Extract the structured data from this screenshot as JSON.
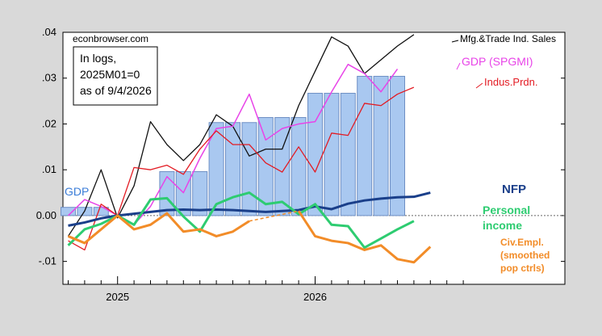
{
  "chart_data": {
    "type": "bar",
    "watermark": "econbrowser.com",
    "note_lines": [
      "In logs,",
      "2025M01=0",
      "as of 9/4/2026"
    ],
    "y_ticks": [
      ".04",
      ".03",
      ".02",
      ".01",
      "0.00",
      "-.01"
    ],
    "x_ticks": [
      "2025",
      "2026"
    ],
    "ylim": [
      -0.015,
      0.04
    ],
    "month_range": [
      "2024-10",
      "2026-10"
    ],
    "colors": {
      "gdp_bars": "#a9c8f0",
      "gdp_bar_edge": "#6e8fc4",
      "mfg_trade_sales": "#111111",
      "gdp_spgmi": "#e844e8",
      "indus_prdn": "#e31b23",
      "nfp": "#1a3f8a",
      "personal_income": "#2ecc71",
      "civ_empl": "#f28c28",
      "gdp_label": "#3b7dd8"
    },
    "series": [
      {
        "key": "gdp_bars",
        "name": "GDP",
        "kind": "bar",
        "x": [
          "2024-10",
          "2024-11",
          "2024-12",
          "2025-01",
          "2025-02",
          "2025-03",
          "2025-04",
          "2025-05",
          "2025-06",
          "2025-07",
          "2025-08",
          "2025-09",
          "2025-10",
          "2025-11",
          "2025-12",
          "2026-01",
          "2026-02",
          "2026-03",
          "2026-04",
          "2026-05",
          "2026-06"
        ],
        "values": [
          0.0018,
          0.0018,
          0.0018,
          0.0,
          0.0,
          0.0,
          0.0096,
          0.0096,
          0.0096,
          0.0203,
          0.0203,
          0.0203,
          0.0214,
          0.0214,
          0.0214,
          0.0267,
          0.0267,
          0.0267,
          0.0304,
          0.0304,
          0.0304
        ]
      },
      {
        "key": "mfg_trade_sales",
        "name": "Mfg.&Trade Ind. Sales",
        "kind": "line",
        "x": [
          "2024-10",
          "2024-11",
          "2024-12",
          "2025-01",
          "2025-02",
          "2025-03",
          "2025-04",
          "2025-05",
          "2025-06",
          "2025-07",
          "2025-08",
          "2025-09",
          "2025-10",
          "2025-11",
          "2025-12",
          "2026-01",
          "2026-02",
          "2026-03",
          "2026-04",
          "2026-05",
          "2026-06",
          "2026-07"
        ],
        "values": [
          -0.0045,
          0.001,
          0.01,
          -0.0005,
          0.0065,
          0.0205,
          0.0155,
          0.012,
          0.0155,
          0.022,
          0.0195,
          0.013,
          0.0145,
          0.0145,
          0.024,
          0.0315,
          0.039,
          0.037,
          0.031,
          0.034,
          0.037,
          0.0395
        ]
      },
      {
        "key": "gdp_spgmi",
        "name": "GDP (SPGMI)",
        "kind": "line",
        "x": [
          "2024-10",
          "2024-11",
          "2024-12",
          "2025-01",
          "2025-02",
          "2025-03",
          "2025-04",
          "2025-05",
          "2025-06",
          "2025-07",
          "2025-08",
          "2025-09",
          "2025-10",
          "2025-11",
          "2025-12",
          "2026-01",
          "2026-02",
          "2026-03",
          "2026-04",
          "2026-05",
          "2026-06"
        ],
        "values": [
          0.0,
          0.0035,
          0.002,
          0.0,
          -0.002,
          0.002,
          0.0085,
          0.005,
          0.0125,
          0.019,
          0.0195,
          0.0265,
          0.0165,
          0.019,
          0.02,
          0.0205,
          0.027,
          0.033,
          0.031,
          0.027,
          0.032
        ]
      },
      {
        "key": "indus_prdn",
        "name": "Indus.Prdn.",
        "kind": "line",
        "x": [
          "2024-10",
          "2024-11",
          "2024-12",
          "2025-01",
          "2025-02",
          "2025-03",
          "2025-04",
          "2025-05",
          "2025-06",
          "2025-07",
          "2025-08",
          "2025-09",
          "2025-10",
          "2025-11",
          "2025-12",
          "2026-01",
          "2026-02",
          "2026-03",
          "2026-04",
          "2026-05",
          "2026-06",
          "2026-07"
        ],
        "values": [
          -0.0055,
          -0.0075,
          0.0025,
          0.0,
          0.0105,
          0.01,
          0.011,
          0.009,
          0.0145,
          0.0185,
          0.0155,
          0.0155,
          0.0115,
          0.0095,
          0.015,
          0.0095,
          0.018,
          0.0175,
          0.0245,
          0.024,
          0.0265,
          0.028
        ]
      },
      {
        "key": "nfp",
        "name": "NFP",
        "kind": "line",
        "x": [
          "2024-10",
          "2024-11",
          "2024-12",
          "2025-01",
          "2025-02",
          "2025-03",
          "2025-04",
          "2025-05",
          "2025-06",
          "2025-07",
          "2025-08",
          "2025-09",
          "2025-10",
          "2025-11",
          "2025-12",
          "2026-01",
          "2026-02",
          "2026-03",
          "2026-04",
          "2026-05",
          "2026-06",
          "2026-07",
          "2026-08"
        ],
        "values": [
          -0.0022,
          -0.0015,
          -0.0006,
          0.0,
          0.0004,
          0.0008,
          0.0012,
          0.0013,
          0.0012,
          0.0013,
          0.0012,
          0.001,
          0.0008,
          0.001,
          0.0012,
          0.002,
          0.0014,
          0.0026,
          0.0033,
          0.0037,
          0.004,
          0.0041,
          0.005
        ]
      },
      {
        "key": "personal_income",
        "name": "Personal income",
        "kind": "line",
        "x": [
          "2024-10",
          "2024-11",
          "2024-12",
          "2025-01",
          "2025-02",
          "2025-03",
          "2025-04",
          "2025-05",
          "2025-06",
          "2025-07",
          "2025-08",
          "2025-09",
          "2025-10",
          "2025-11",
          "2025-12",
          "2026-01",
          "2026-02",
          "2026-03",
          "2026-04",
          "2026-05",
          "2026-06",
          "2026-07"
        ],
        "values": [
          -0.0065,
          -0.003,
          -0.0018,
          0.0,
          -0.002,
          0.0035,
          0.0038,
          -0.0002,
          -0.0035,
          0.0025,
          0.004,
          0.005,
          0.0025,
          0.003,
          0.0003,
          0.0025,
          -0.002,
          -0.0023,
          -0.007,
          -0.005,
          -0.003,
          -0.0012
        ]
      },
      {
        "key": "civ_empl",
        "name": "Civ.Empl. (smoothed pop ctrls)",
        "kind": "line",
        "dashed_gap": [
          "2025-09",
          "2025-12"
        ],
        "x": [
          "2024-10",
          "2024-11",
          "2024-12",
          "2025-01",
          "2025-02",
          "2025-03",
          "2025-04",
          "2025-05",
          "2025-06",
          "2025-07",
          "2025-08",
          "2025-09",
          "2025-12",
          "2026-01",
          "2026-02",
          "2026-03",
          "2026-04",
          "2026-05",
          "2026-06",
          "2026-07",
          "2026-08"
        ],
        "values": [
          -0.0045,
          -0.006,
          -0.003,
          0.0,
          -0.003,
          -0.002,
          0.0005,
          -0.0035,
          -0.003,
          -0.0045,
          -0.0035,
          -0.0012,
          0.001,
          -0.0045,
          -0.0055,
          -0.006,
          -0.0075,
          -0.0065,
          -0.0095,
          -0.0102,
          -0.0068
        ]
      }
    ],
    "labels": {
      "gdp": "GDP",
      "mfg": "Mfg.&Trade Ind. Sales",
      "spgmi": "GDP (SPGMI)",
      "indus": "Indus.Prdn.",
      "nfp": "NFP",
      "pi_line1": "Personal",
      "pi_line2": "income",
      "civ_line1": "Civ.Empl.",
      "civ_line2": "(smoothed",
      "civ_line3": "pop ctrls)"
    }
  }
}
